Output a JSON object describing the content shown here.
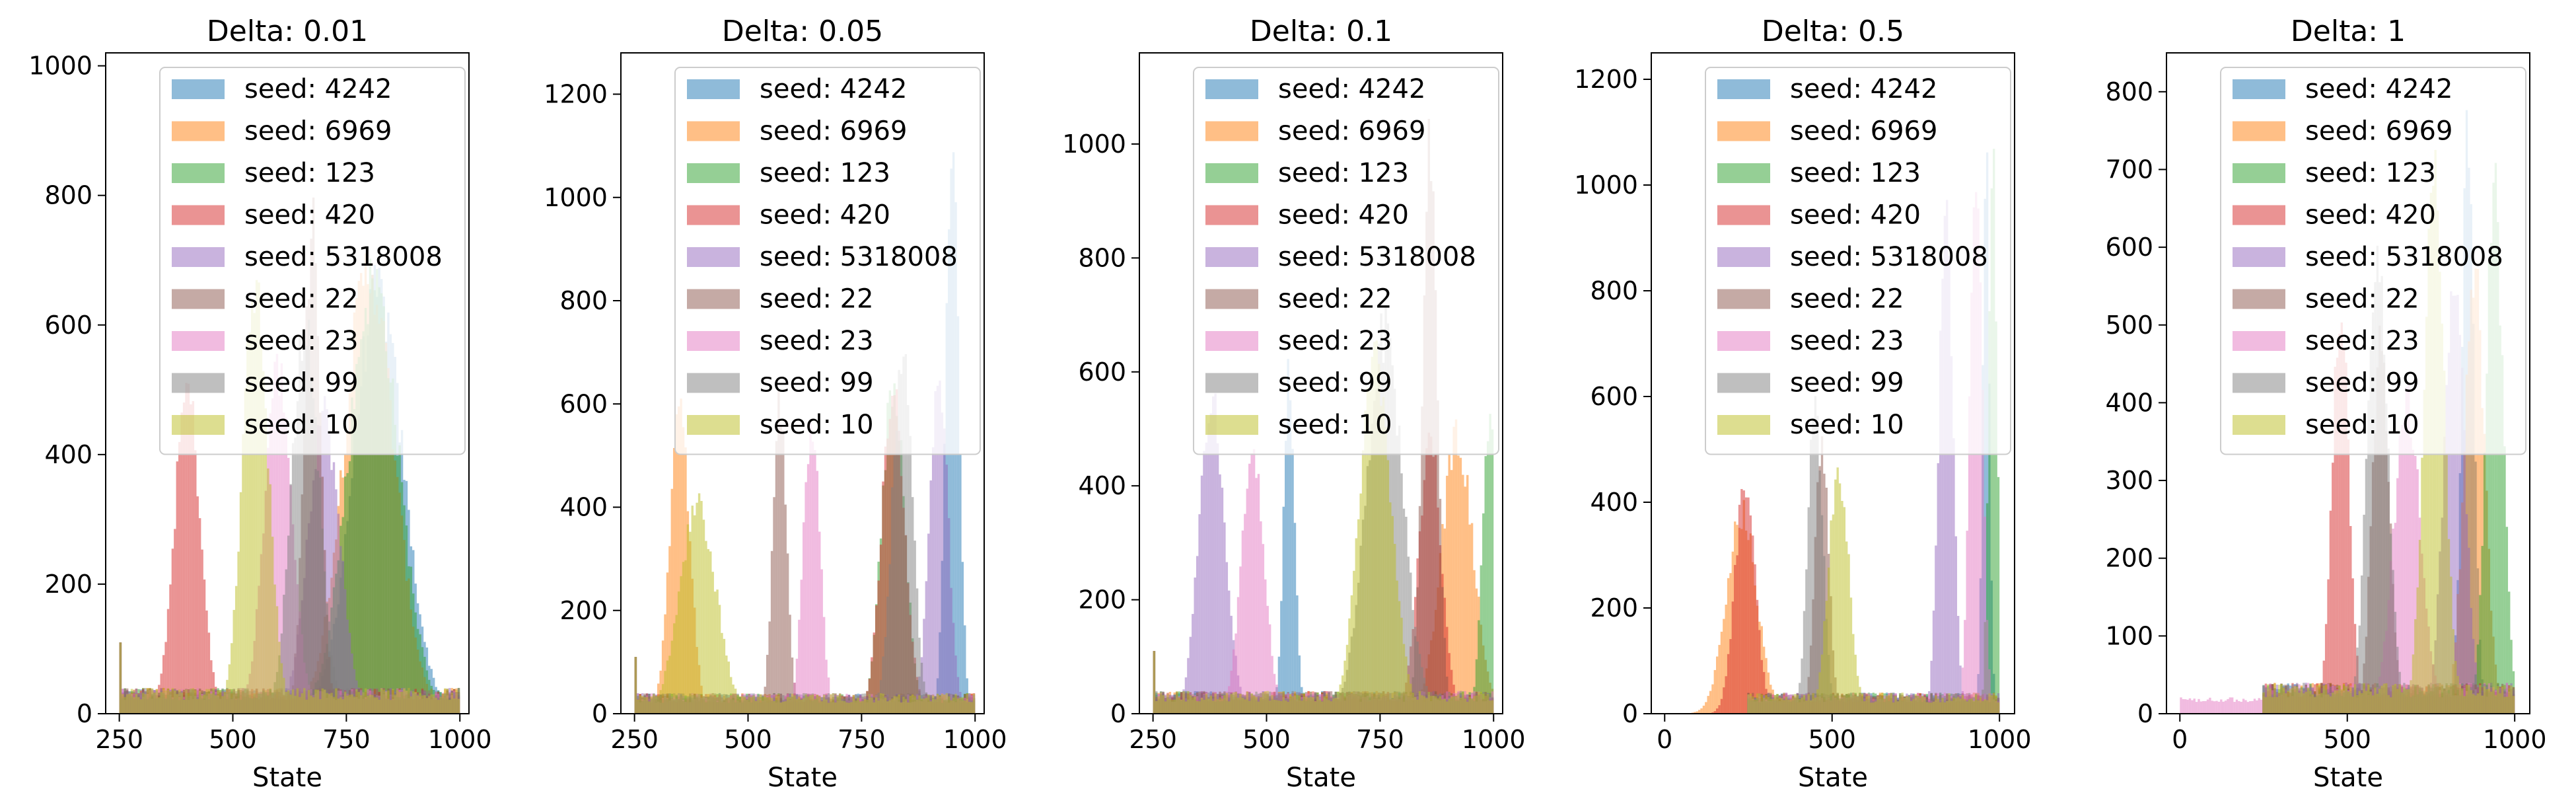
{
  "figure": {
    "legend_placement": "upper-left"
  },
  "series_legend": [
    {
      "name": "seed: 4242",
      "color": "#1f77b4"
    },
    {
      "name": "seed: 6969",
      "color": "#ff7f0e"
    },
    {
      "name": "seed: 123",
      "color": "#2ca02c"
    },
    {
      "name": "seed: 420",
      "color": "#d62728"
    },
    {
      "name": "seed: 5318008",
      "color": "#9467bd"
    },
    {
      "name": "seed: 22",
      "color": "#8c564b"
    },
    {
      "name": "seed: 23",
      "color": "#e377c2"
    },
    {
      "name": "seed: 99",
      "color": "#7f7f7f"
    },
    {
      "name": "seed: 10",
      "color": "#bcbd22"
    }
  ],
  "chart_data": [
    {
      "type": "histogram",
      "title": "Delta: 0.01",
      "xlabel": "State",
      "ylabel": "",
      "xlim": [
        220,
        1020
      ],
      "ylim": [
        0,
        1020
      ],
      "xticks": [
        250,
        500,
        750,
        1000
      ],
      "yticks": [
        0,
        200,
        400,
        600,
        800,
        1000
      ],
      "alpha": 0.5,
      "baseline": 38,
      "spike_at_250": 110,
      "series": [
        {
          "name": "seed: 4242",
          "peak_x": 820,
          "peak_count": 700,
          "width": 55
        },
        {
          "name": "seed: 6969",
          "peak_x": 800,
          "peak_count": 740,
          "width": 55
        },
        {
          "name": "seed: 123",
          "peak_x": 810,
          "peak_count": 720,
          "width": 55
        },
        {
          "name": "seed: 420",
          "peak_x": 400,
          "peak_count": 540,
          "width": 28
        },
        {
          "name": "seed: 5318008",
          "peak_x": 700,
          "peak_count": 500,
          "width": 35
        },
        {
          "name": "seed: 22",
          "peak_x": 675,
          "peak_count": 820,
          "width": 18
        },
        {
          "name": "seed: 23",
          "peak_x": 600,
          "peak_count": 570,
          "width": 30
        },
        {
          "name": "seed: 99",
          "peak_x": 660,
          "peak_count": 660,
          "width": 30
        },
        {
          "name": "seed: 10",
          "peak_x": 550,
          "peak_count": 710,
          "width": 28
        }
      ]
    },
    {
      "type": "histogram",
      "title": "Delta: 0.05",
      "xlabel": "State",
      "ylabel": "",
      "xlim": [
        220,
        1020
      ],
      "ylim": [
        0,
        1280
      ],
      "xticks": [
        250,
        500,
        750,
        1000
      ],
      "yticks": [
        0,
        200,
        400,
        600,
        800,
        1000,
        1200
      ],
      "alpha": 0.5,
      "baseline": 38,
      "spike_at_250": 110,
      "series": [
        {
          "name": "seed: 4242",
          "peak_x": 950,
          "peak_count": 1190,
          "width": 14
        },
        {
          "name": "seed: 6969",
          "peak_x": 350,
          "peak_count": 620,
          "width": 22
        },
        {
          "name": "seed: 123",
          "peak_x": 820,
          "peak_count": 690,
          "width": 25
        },
        {
          "name": "seed: 420",
          "peak_x": 820,
          "peak_count": 680,
          "width": 25
        },
        {
          "name": "seed: 5318008",
          "peak_x": 920,
          "peak_count": 720,
          "width": 20
        },
        {
          "name": "seed: 22",
          "peak_x": 570,
          "peak_count": 640,
          "width": 15
        },
        {
          "name": "seed: 23",
          "peak_x": 640,
          "peak_count": 620,
          "width": 18
        },
        {
          "name": "seed: 99",
          "peak_x": 840,
          "peak_count": 740,
          "width": 22
        },
        {
          "name": "seed: 10",
          "peak_x": 390,
          "peak_count": 430,
          "width": 40
        }
      ]
    },
    {
      "type": "histogram",
      "title": "Delta: 0.1",
      "xlabel": "State",
      "ylabel": "",
      "xlim": [
        220,
        1020
      ],
      "ylim": [
        0,
        1160
      ],
      "xticks": [
        250,
        500,
        750,
        1000
      ],
      "yticks": [
        0,
        200,
        400,
        600,
        800,
        1000
      ],
      "alpha": 0.5,
      "baseline": 38,
      "spike_at_250": 110,
      "series": [
        {
          "name": "seed: 4242",
          "peak_x": 550,
          "peak_count": 650,
          "width": 12
        },
        {
          "name": "seed: 6969",
          "peak_x": 920,
          "peak_count": 520,
          "width": 35
        },
        {
          "name": "seed: 123",
          "peak_x": 990,
          "peak_count": 570,
          "width": 15
        },
        {
          "name": "seed: 420",
          "peak_x": 860,
          "peak_count": 520,
          "width": 25
        },
        {
          "name": "seed: 5318008",
          "peak_x": 380,
          "peak_count": 600,
          "width": 28
        },
        {
          "name": "seed: 22",
          "peak_x": 860,
          "peak_count": 1110,
          "width": 16
        },
        {
          "name": "seed: 23",
          "peak_x": 470,
          "peak_count": 490,
          "width": 25
        },
        {
          "name": "seed: 99",
          "peak_x": 760,
          "peak_count": 720,
          "width": 40
        },
        {
          "name": "seed: 10",
          "peak_x": 740,
          "peak_count": 660,
          "width": 35
        }
      ]
    },
    {
      "type": "histogram",
      "title": "Delta: 0.5",
      "xlabel": "State",
      "ylabel": "",
      "xlim": [
        -40,
        1045
      ],
      "ylim": [
        0,
        1250
      ],
      "xticks": [
        0,
        500,
        1000
      ],
      "yticks": [
        0,
        200,
        400,
        600,
        800,
        1000,
        1200
      ],
      "alpha": 0.5,
      "baseline": 38,
      "spike_at_250": 110,
      "series": [
        {
          "name": "seed: 4242",
          "peak_x": 960,
          "peak_count": 1160,
          "width": 10
        },
        {
          "name": "seed: 6969",
          "peak_x": 230,
          "peak_count": 410,
          "width": 45
        },
        {
          "name": "seed: 123",
          "peak_x": 980,
          "peak_count": 1180,
          "width": 12
        },
        {
          "name": "seed: 420",
          "peak_x": 240,
          "peak_count": 470,
          "width": 30
        },
        {
          "name": "seed: 5318008",
          "peak_x": 840,
          "peak_count": 1060,
          "width": 20
        },
        {
          "name": "seed: 22",
          "peak_x": 470,
          "peak_count": 560,
          "width": 20
        },
        {
          "name": "seed: 23",
          "peak_x": 930,
          "peak_count": 1140,
          "width": 18
        },
        {
          "name": "seed: 99",
          "peak_x": 450,
          "peak_count": 640,
          "width": 22
        },
        {
          "name": "seed: 10",
          "peak_x": 520,
          "peak_count": 500,
          "width": 30
        }
      ]
    },
    {
      "type": "histogram",
      "title": "Delta: 1",
      "xlabel": "State",
      "ylabel": "",
      "xlim": [
        -40,
        1045
      ],
      "ylim": [
        0,
        850
      ],
      "xticks": [
        0,
        500,
        1000
      ],
      "yticks": [
        0,
        100,
        200,
        300,
        400,
        500,
        600,
        700,
        800
      ],
      "alpha": 0.5,
      "baseline": 38,
      "spike_at_250": 110,
      "series": [
        {
          "name": "seed: 4242",
          "peak_x": 860,
          "peak_count": 810,
          "width": 18
        },
        {
          "name": "seed: 6969",
          "peak_x": 880,
          "peak_count": 620,
          "width": 30
        },
        {
          "name": "seed: 123",
          "peak_x": 940,
          "peak_count": 730,
          "width": 25
        },
        {
          "name": "seed: 420",
          "peak_x": 480,
          "peak_count": 570,
          "width": 25
        },
        {
          "name": "seed: 5318008",
          "peak_x": 820,
          "peak_count": 620,
          "width": 30
        },
        {
          "name": "seed: 22",
          "peak_x": 600,
          "peak_count": 520,
          "width": 25
        },
        {
          "name": "seed: 23",
          "peak_x": 680,
          "peak_count": 430,
          "width": 40
        },
        {
          "name": "seed: 99",
          "peak_x": 590,
          "peak_count": 640,
          "width": 30
        },
        {
          "name": "seed: 10",
          "peak_x": 760,
          "peak_count": 740,
          "width": 30
        }
      ]
    }
  ]
}
